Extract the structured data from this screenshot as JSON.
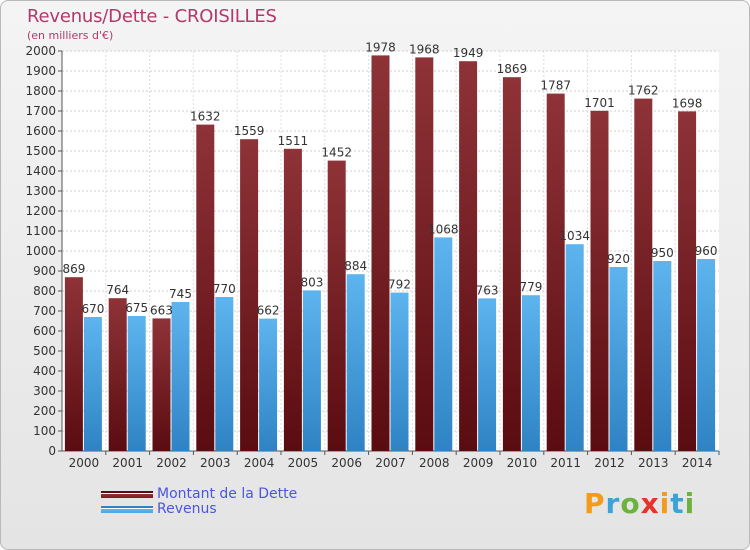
{
  "header": {
    "title": "Revenus/Dette - CROISILLES",
    "subtitle": "(en milliers d'€)"
  },
  "legend": {
    "items": [
      {
        "label": "Montant de la Dette",
        "color": "#7b1a1f"
      },
      {
        "label": "Revenus",
        "color": "#4da6e6"
      }
    ]
  },
  "brand": {
    "letters": [
      "P",
      "r",
      "o",
      "x",
      "i",
      "t",
      "i"
    ],
    "colors": [
      "#f29b1d",
      "#3aa3d8",
      "#6ab43e",
      "#e5332a",
      "#f29b1d",
      "#3aa3d8",
      "#6ab43e"
    ]
  },
  "chart_data": {
    "type": "bar",
    "categories": [
      "2000",
      "2001",
      "2002",
      "2003",
      "2004",
      "2005",
      "2006",
      "2007",
      "2008",
      "2009",
      "2010",
      "2011",
      "2012",
      "2013",
      "2014"
    ],
    "series": [
      {
        "name": "Montant de la Dette",
        "color": "#7b1a1f",
        "values": [
          869,
          764,
          663,
          1632,
          1559,
          1511,
          1452,
          1978,
          1968,
          1949,
          1869,
          1787,
          1701,
          1762,
          1698
        ]
      },
      {
        "name": "Revenus",
        "color": "#4da6e6",
        "values": [
          670,
          675,
          745,
          770,
          662,
          803,
          884,
          792,
          1068,
          763,
          779,
          1034,
          920,
          950,
          960
        ]
      }
    ],
    "ylim": [
      0,
      2000
    ],
    "ytick_step": 100,
    "grid": true,
    "data_labels": true,
    "legend_position": "bottom-left"
  }
}
